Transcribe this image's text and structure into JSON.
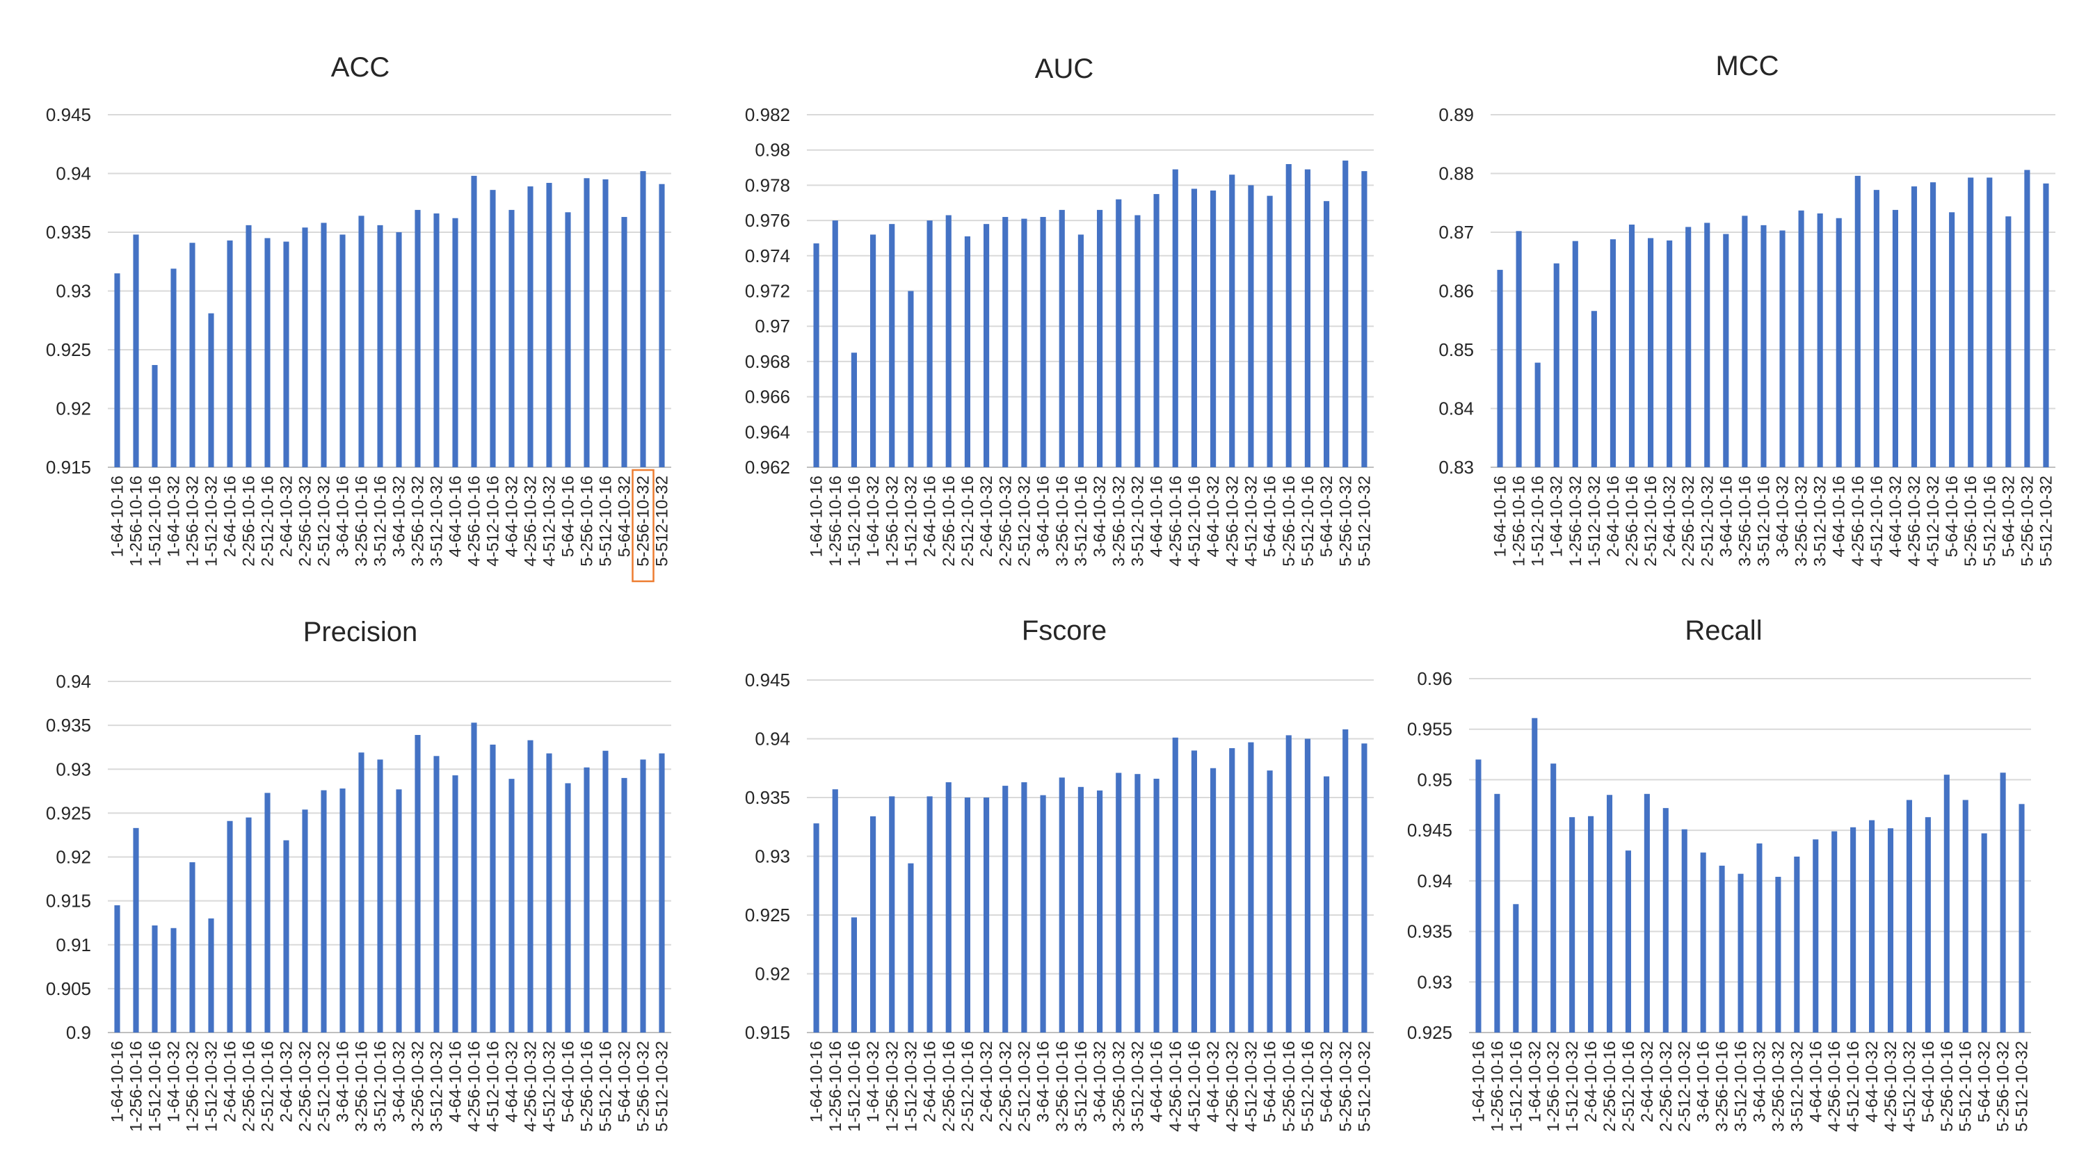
{
  "chart_data": [
    {
      "type": "bar",
      "title": "ACC",
      "xlabel": "",
      "ylabel": "",
      "ylim": [
        0.915,
        0.945
      ],
      "yticks": [
        "0.915",
        "0.92",
        "0.925",
        "0.93",
        "0.935",
        "0.94",
        "0.945"
      ],
      "grid": true,
      "categories": [
        "1-64-10-16",
        "1-256-10-16",
        "1-512-10-16",
        "1-64-10-32",
        "1-256-10-32",
        "1-512-10-32",
        "2-64-10-16",
        "2-256-10-16",
        "2-512-10-16",
        "2-64-10-32",
        "2-256-10-32",
        "2-512-10-32",
        "3-64-10-16",
        "3-256-10-16",
        "3-512-10-16",
        "3-64-10-32",
        "3-256-10-32",
        "3-512-10-32",
        "4-64-10-16",
        "4-256-10-16",
        "4-512-10-16",
        "4-64-10-32",
        "4-256-10-32",
        "4-512-10-32",
        "5-64-10-16",
        "5-256-10-16",
        "5-512-10-16",
        "5-64-10-32",
        "5-256-10-32",
        "5-512-10-32"
      ],
      "values": [
        0.9315,
        0.9348,
        0.9237,
        0.9319,
        0.9341,
        0.9281,
        0.9343,
        0.9356,
        0.9345,
        0.9342,
        0.9354,
        0.9358,
        0.9348,
        0.9364,
        0.9356,
        0.935,
        0.9369,
        0.9366,
        0.9362,
        0.9398,
        0.9386,
        0.9369,
        0.9389,
        0.9392,
        0.9367,
        0.9396,
        0.9395,
        0.9363,
        0.9402,
        0.9391
      ],
      "highlighted_category": "5-256-10-32"
    },
    {
      "type": "bar",
      "title": "AUC",
      "xlabel": "",
      "ylabel": "",
      "ylim": [
        0.962,
        0.982
      ],
      "yticks": [
        "0.962",
        "0.964",
        "0.966",
        "0.968",
        "0.97",
        "0.972",
        "0.974",
        "0.976",
        "0.978",
        "0.98",
        "0.982"
      ],
      "grid": true,
      "categories": [
        "1-64-10-16",
        "1-256-10-16",
        "1-512-10-16",
        "1-64-10-32",
        "1-256-10-32",
        "1-512-10-32",
        "2-64-10-16",
        "2-256-10-16",
        "2-512-10-16",
        "2-64-10-32",
        "2-256-10-32",
        "2-512-10-32",
        "3-64-10-16",
        "3-256-10-16",
        "3-512-10-16",
        "3-64-10-32",
        "3-256-10-32",
        "3-512-10-32",
        "4-64-10-16",
        "4-256-10-16",
        "4-512-10-16",
        "4-64-10-32",
        "4-256-10-32",
        "4-512-10-32",
        "5-64-10-16",
        "5-256-10-16",
        "5-512-10-16",
        "5-64-10-32",
        "5-256-10-32",
        "5-512-10-32"
      ],
      "values": [
        0.9747,
        0.976,
        0.9685,
        0.9752,
        0.9758,
        0.972,
        0.976,
        0.9763,
        0.9751,
        0.9758,
        0.9762,
        0.9761,
        0.9762,
        0.9766,
        0.9752,
        0.9766,
        0.9772,
        0.9763,
        0.9775,
        0.9789,
        0.9778,
        0.9777,
        0.9786,
        0.978,
        0.9774,
        0.9792,
        0.9789,
        0.9771,
        0.9794,
        0.9788
      ]
    },
    {
      "type": "bar",
      "title": "MCC",
      "xlabel": "",
      "ylabel": "",
      "ylim": [
        0.83,
        0.89
      ],
      "yticks": [
        "0.83",
        "0.84",
        "0.85",
        "0.86",
        "0.87",
        "0.88",
        "0.89"
      ],
      "grid": true,
      "categories": [
        "1-64-10-16",
        "1-256-10-16",
        "1-512-10-16",
        "1-64-10-32",
        "1-256-10-32",
        "1-512-10-32",
        "2-64-10-16",
        "2-256-10-16",
        "2-512-10-16",
        "2-64-10-32",
        "2-256-10-32",
        "2-512-10-32",
        "3-64-10-16",
        "3-256-10-16",
        "3-512-10-16",
        "3-64-10-32",
        "3-256-10-32",
        "3-512-10-32",
        "4-64-10-16",
        "4-256-10-16",
        "4-512-10-16",
        "4-64-10-32",
        "4-256-10-32",
        "4-512-10-32",
        "5-64-10-16",
        "5-256-10-16",
        "5-512-10-16",
        "5-64-10-32",
        "5-256-10-32",
        "5-512-10-32"
      ],
      "values": [
        0.8636,
        0.8702,
        0.8478,
        0.8647,
        0.8685,
        0.8566,
        0.8688,
        0.8713,
        0.869,
        0.8686,
        0.8709,
        0.8716,
        0.8697,
        0.8728,
        0.8712,
        0.8703,
        0.8737,
        0.8732,
        0.8724,
        0.8796,
        0.8772,
        0.8738,
        0.8778,
        0.8785,
        0.8734,
        0.8793,
        0.8793,
        0.8727,
        0.8806,
        0.8783
      ]
    },
    {
      "type": "bar",
      "title": "Precision",
      "xlabel": "",
      "ylabel": "",
      "ylim": [
        0.9,
        0.94
      ],
      "yticks": [
        "0.9",
        "0.905",
        "0.91",
        "0.915",
        "0.92",
        "0.925",
        "0.93",
        "0.935",
        "0.94"
      ],
      "grid": true,
      "categories": [
        "1-64-10-16",
        "1-256-10-16",
        "1-512-10-16",
        "1-64-10-32",
        "1-256-10-32",
        "1-512-10-32",
        "2-64-10-16",
        "2-256-10-16",
        "2-512-10-16",
        "2-64-10-32",
        "2-256-10-32",
        "2-512-10-32",
        "3-64-10-16",
        "3-256-10-16",
        "3-512-10-16",
        "3-64-10-32",
        "3-256-10-32",
        "3-512-10-32",
        "4-64-10-16",
        "4-256-10-16",
        "4-512-10-16",
        "4-64-10-32",
        "4-256-10-32",
        "4-512-10-32",
        "5-64-10-16",
        "5-256-10-16",
        "5-512-10-16",
        "5-64-10-32",
        "5-256-10-32",
        "5-512-10-32"
      ],
      "values": [
        0.9145,
        0.9233,
        0.9122,
        0.9119,
        0.9194,
        0.913,
        0.9241,
        0.9245,
        0.9273,
        0.9219,
        0.9254,
        0.9276,
        0.9278,
        0.9319,
        0.9311,
        0.9277,
        0.9339,
        0.9315,
        0.9293,
        0.9353,
        0.9328,
        0.9289,
        0.9333,
        0.9318,
        0.9284,
        0.9302,
        0.9321,
        0.929,
        0.9311,
        0.9318
      ]
    },
    {
      "type": "bar",
      "title": "Fscore",
      "xlabel": "",
      "ylabel": "",
      "ylim": [
        0.915,
        0.945
      ],
      "yticks": [
        "0.915",
        "0.92",
        "0.925",
        "0.93",
        "0.935",
        "0.94",
        "0.945"
      ],
      "grid": true,
      "categories": [
        "1-64-10-16",
        "1-256-10-16",
        "1-512-10-16",
        "1-64-10-32",
        "1-256-10-32",
        "1-512-10-32",
        "2-64-10-16",
        "2-256-10-16",
        "2-512-10-16",
        "2-64-10-32",
        "2-256-10-32",
        "2-512-10-32",
        "3-64-10-16",
        "3-256-10-16",
        "3-512-10-16",
        "3-64-10-32",
        "3-256-10-32",
        "3-512-10-32",
        "4-64-10-16",
        "4-256-10-16",
        "4-512-10-16",
        "4-64-10-32",
        "4-256-10-32",
        "4-512-10-32",
        "5-64-10-16",
        "5-256-10-16",
        "5-512-10-16",
        "5-64-10-32",
        "5-256-10-32",
        "5-512-10-32"
      ],
      "values": [
        0.9328,
        0.9357,
        0.9248,
        0.9334,
        0.9351,
        0.9294,
        0.9351,
        0.9363,
        0.935,
        0.935,
        0.936,
        0.9363,
        0.9352,
        0.9367,
        0.9359,
        0.9356,
        0.9371,
        0.937,
        0.9366,
        0.9401,
        0.939,
        0.9375,
        0.9392,
        0.9397,
        0.9373,
        0.9403,
        0.94,
        0.9368,
        0.9408,
        0.9396
      ]
    },
    {
      "type": "bar",
      "title": "Recall",
      "xlabel": "",
      "ylabel": "",
      "ylim": [
        0.925,
        0.96
      ],
      "yticks": [
        "0.925",
        "0.93",
        "0.935",
        "0.94",
        "0.945",
        "0.95",
        "0.955",
        "0.96"
      ],
      "grid": true,
      "categories": [
        "1-64-10-16",
        "1-256-10-16",
        "1-512-10-16",
        "1-64-10-32",
        "1-256-10-32",
        "1-512-10-32",
        "2-64-10-16",
        "2-256-10-16",
        "2-512-10-16",
        "2-64-10-32",
        "2-256-10-32",
        "2-512-10-32",
        "3-64-10-16",
        "3-256-10-16",
        "3-512-10-16",
        "3-64-10-32",
        "3-256-10-32",
        "3-512-10-32",
        "4-64-10-16",
        "4-256-10-16",
        "4-512-10-16",
        "4-64-10-32",
        "4-256-10-32",
        "4-512-10-32",
        "5-64-10-16",
        "5-256-10-16",
        "5-512-10-16",
        "5-64-10-32",
        "5-256-10-32",
        "5-512-10-32"
      ],
      "values": [
        0.952,
        0.9486,
        0.9377,
        0.9561,
        0.9516,
        0.9463,
        0.9464,
        0.9485,
        0.943,
        0.9486,
        0.9472,
        0.9451,
        0.9428,
        0.9415,
        0.9407,
        0.9437,
        0.9404,
        0.9424,
        0.9441,
        0.9449,
        0.9453,
        0.946,
        0.9452,
        0.948,
        0.9463,
        0.9505,
        0.948,
        0.9447,
        0.9507,
        0.9476
      ]
    }
  ],
  "colors": {
    "bar": "#4472c4",
    "grid": "#d9d9d9",
    "highlight": "#ed7d31"
  }
}
